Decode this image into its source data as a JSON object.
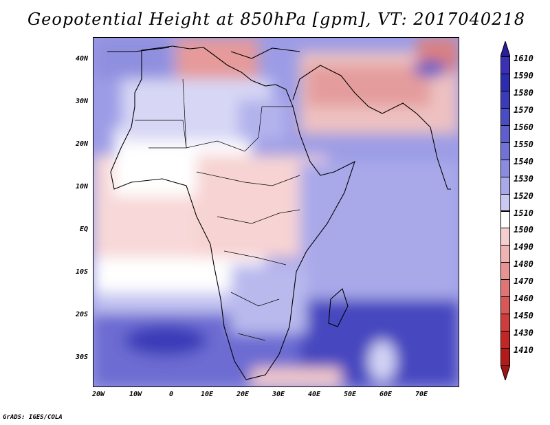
{
  "title": "Geopotential Height at 850hPa [gpm], VT: 2017040218",
  "footer": "GrADS: IGES/COLA",
  "y_ticks": [
    "40N",
    "30N",
    "20N",
    "10N",
    "EQ",
    "10S",
    "20S",
    "30S"
  ],
  "x_ticks": [
    "20W",
    "10W",
    "0",
    "10E",
    "20E",
    "30E",
    "40E",
    "50E",
    "60E",
    "70E"
  ],
  "colorbar": {
    "labels": [
      "1610",
      "1590",
      "1580",
      "1570",
      "1560",
      "1550",
      "1540",
      "1530",
      "1520",
      "1510",
      "1500",
      "1490",
      "1480",
      "1470",
      "1460",
      "1450",
      "1430",
      "1410"
    ],
    "colors": [
      "#3a2fb5",
      "#2c2cae",
      "#3b3bb9",
      "#4b4bc3",
      "#5e5ecd",
      "#7272d6",
      "#8b8be0",
      "#a8a8ea",
      "#c9c9f3",
      "#ffffff",
      "#f5cfcf",
      "#efb3b3",
      "#e89494",
      "#e07575",
      "#d85858",
      "#cf3c3c",
      "#c42626",
      "#b31a1a"
    ],
    "top_arrow_color": "#2a1f9e",
    "bottom_arrow_color": "#9e1515"
  }
}
